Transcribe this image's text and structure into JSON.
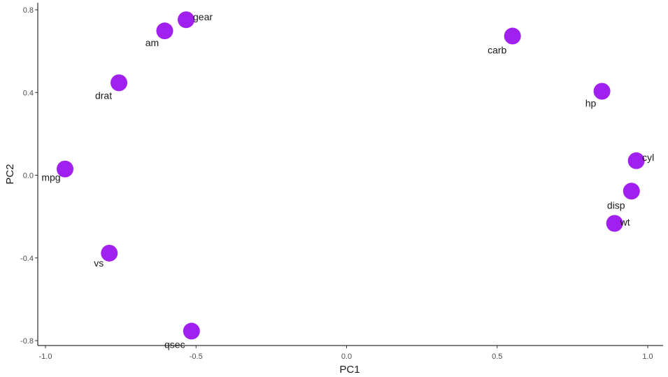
{
  "chart_data": {
    "type": "scatter",
    "xlabel": "PC1",
    "ylabel": "PC2",
    "xlim": [
      -1.0,
      1.0
    ],
    "ylim": [
      -0.8,
      0.8
    ],
    "x_ticks": [
      -1.0,
      -0.5,
      0.0,
      0.5,
      1.0
    ],
    "x_tick_labels": [
      "-1.0",
      "-0.5",
      "0.0",
      "0.5",
      "1.0"
    ],
    "y_ticks": [
      -0.8,
      -0.4,
      0.0,
      0.4,
      0.8
    ],
    "y_tick_labels": [
      "-0.8",
      "-0.4",
      "0.0",
      "0.4",
      "0.8"
    ],
    "grid": false,
    "legend": "none",
    "point_color": "#a020f0",
    "points": [
      {
        "label": "mpg",
        "x": -0.935,
        "y": 0.03
      },
      {
        "label": "cyl",
        "x": 0.962,
        "y": 0.07
      },
      {
        "label": "disp",
        "x": 0.946,
        "y": -0.077
      },
      {
        "label": "hp",
        "x": 0.848,
        "y": 0.406
      },
      {
        "label": "drat",
        "x": -0.756,
        "y": 0.447
      },
      {
        "label": "wt",
        "x": 0.89,
        "y": -0.233
      },
      {
        "label": "qsec",
        "x": -0.515,
        "y": -0.754
      },
      {
        "label": "vs",
        "x": -0.788,
        "y": -0.377
      },
      {
        "label": "am",
        "x": -0.604,
        "y": 0.698
      },
      {
        "label": "gear",
        "x": -0.533,
        "y": 0.752
      },
      {
        "label": "carb",
        "x": 0.551,
        "y": 0.673
      }
    ]
  }
}
